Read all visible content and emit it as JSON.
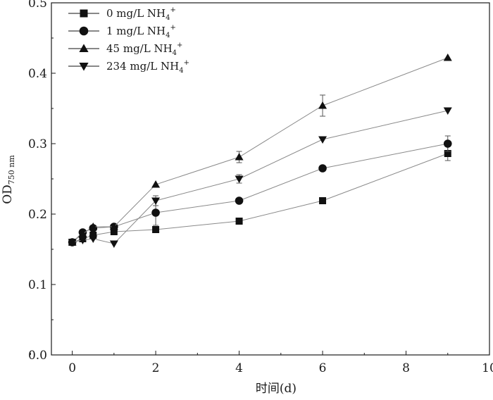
{
  "chart_data": {
    "type": "line",
    "xlabel": "时间(d)",
    "ylabel": "OD",
    "ylabel_sub": "750 nm",
    "xlim": [
      -0.5,
      10
    ],
    "ylim": [
      0,
      0.5
    ],
    "x_ticks": [
      "0",
      "2",
      "4",
      "6",
      "8",
      "10"
    ],
    "y_ticks": [
      "0.0",
      "0.1",
      "0.2",
      "0.3",
      "0.4",
      "0.5"
    ],
    "legend_position": "top-left",
    "series": [
      {
        "name": "0 mg/L NH4+",
        "label_main": "0 mg/L NH",
        "label_sub": "4",
        "label_sup": "+",
        "marker": "square",
        "x": [
          0,
          0.25,
          0.5,
          1,
          2,
          4,
          6,
          9
        ],
        "y": [
          0.16,
          0.165,
          0.17,
          0.175,
          0.178,
          0.19,
          0.219,
          0.286
        ],
        "err": [
          0,
          0,
          0,
          0,
          0,
          0,
          0,
          0.01
        ]
      },
      {
        "name": "1 mg/L NH4+",
        "label_main": "1 mg/L NH",
        "label_sub": "4",
        "label_sup": "+",
        "marker": "circle",
        "x": [
          0,
          0.25,
          0.5,
          1,
          2,
          4,
          6,
          9
        ],
        "y": [
          0.16,
          0.174,
          0.18,
          0.182,
          0.202,
          0.219,
          0.265,
          0.3
        ],
        "err": [
          0,
          0,
          0,
          0,
          0.018,
          0,
          0,
          0.011
        ]
      },
      {
        "name": "45 mg/L NH4+",
        "label_main": "45 mg/L NH",
        "label_sub": "4",
        "label_sup": "+",
        "marker": "triangle-up",
        "x": [
          0,
          0.25,
          0.5,
          1,
          2,
          4,
          6,
          9
        ],
        "y": [
          0.16,
          0.172,
          0.182,
          0.182,
          0.242,
          0.281,
          0.354,
          0.422
        ],
        "err": [
          0,
          0,
          0,
          0,
          0,
          0.008,
          0.015,
          0
        ]
      },
      {
        "name": "234 mg/L NH4+",
        "label_main": "234 mg/L NH",
        "label_sub": "4",
        "label_sup": "+",
        "marker": "triangle-down",
        "x": [
          0,
          0.25,
          0.5,
          1,
          2,
          4,
          6,
          9
        ],
        "y": [
          0.16,
          0.163,
          0.165,
          0.158,
          0.219,
          0.25,
          0.306,
          0.347
        ],
        "err": [
          0,
          0,
          0,
          0,
          0.007,
          0.006,
          0,
          0
        ]
      }
    ]
  },
  "colors": {
    "line": "#8a8a8a",
    "marker": "#111111",
    "axis": "#1a1a1a"
  }
}
